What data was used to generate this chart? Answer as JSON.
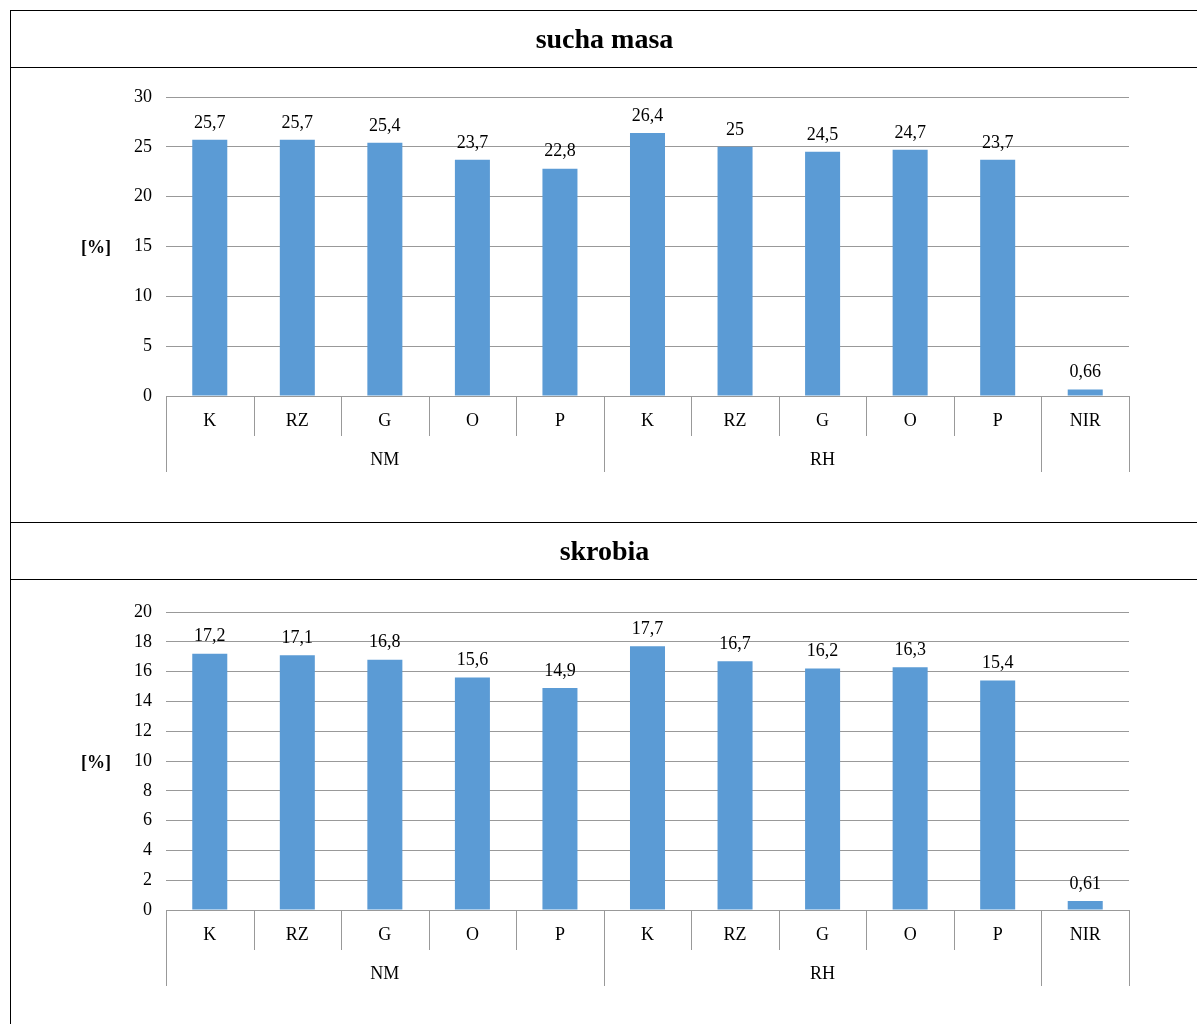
{
  "chart_data": [
    {
      "type": "bar",
      "title": "sucha masa",
      "ylabel": "[%]",
      "categories": [
        "K",
        "RZ",
        "G",
        "O",
        "P",
        "K",
        "RZ",
        "G",
        "O",
        "P",
        "NIR"
      ],
      "series": [
        {
          "color": "#5b9bd5",
          "values": [
            25.7,
            25.7,
            25.4,
            23.7,
            22.8,
            26.4,
            25,
            24.5,
            24.7,
            23.7,
            0.66
          ],
          "value_labels": [
            "25,7",
            "25,7",
            "25,4",
            "23,7",
            "22,8",
            "26,4",
            "25",
            "24,5",
            "24,7",
            "23,7",
            "0,66"
          ]
        }
      ],
      "annotations": [
        "NM",
        "RH"
      ],
      "ylim": [
        0,
        30
      ],
      "yticks": [
        0,
        5,
        10,
        15,
        20,
        25,
        30
      ],
      "grid": "y",
      "legend": false
    },
    {
      "type": "bar",
      "title": "skrobia",
      "ylabel": "[%]",
      "categories": [
        "K",
        "RZ",
        "G",
        "O",
        "P",
        "K",
        "RZ",
        "G",
        "O",
        "P",
        "NIR"
      ],
      "series": [
        {
          "color": "#5b9bd5",
          "values": [
            17.2,
            17.1,
            16.8,
            15.6,
            14.9,
            17.7,
            16.7,
            16.2,
            16.3,
            15.4,
            0.61
          ],
          "value_labels": [
            "17,2",
            "17,1",
            "16,8",
            "15,6",
            "14,9",
            "17,7",
            "16,7",
            "16,2",
            "16,3",
            "15,4",
            "0,61"
          ]
        }
      ],
      "annotations": [
        "NM",
        "RH"
      ],
      "ylim": [
        0,
        20
      ],
      "yticks": [
        0,
        2,
        4,
        6,
        8,
        10,
        12,
        14,
        16,
        18,
        20
      ],
      "grid": "y",
      "legend": false
    }
  ]
}
